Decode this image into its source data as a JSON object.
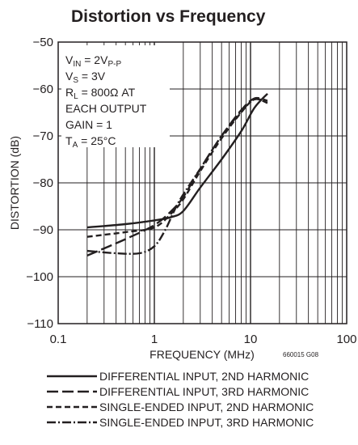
{
  "chart_data": {
    "type": "line",
    "title": "Distortion vs Frequency",
    "xlabel": "FREQUENCY (MHz)",
    "ylabel": "DISTORTION (dB)",
    "xscale": "log",
    "xlim": [
      0.1,
      100
    ],
    "ylim": [
      -110,
      -50
    ],
    "x_ticks": [
      "0.1",
      "1",
      "10",
      "100"
    ],
    "y_ticks": [
      "−50",
      "−60",
      "−70",
      "−80",
      "−90",
      "−100",
      "−110"
    ],
    "grid": true,
    "figure_code": "660015 G08",
    "conditions": {
      "line1": {
        "main": "V",
        "sub": "IN",
        "rest": " = 2V",
        "sub2": "P-P"
      },
      "line2": {
        "main": "V",
        "sub": "S",
        "rest": " = 3V"
      },
      "line3": {
        "main": "R",
        "sub": "L",
        "rest": " = 800Ω AT"
      },
      "line4": "EACH OUTPUT",
      "line5": "GAIN = 1",
      "line6": {
        "main": "T",
        "sub": "A",
        "rest": " = 25°C"
      }
    },
    "legend_position": "bottom",
    "series": [
      {
        "name": "DIFFERENTIAL INPUT, 2ND HARMONIC",
        "style": "solid",
        "x": [
          0.2,
          0.5,
          1,
          1.5,
          2,
          3,
          5,
          8,
          11,
          15
        ],
        "y": [
          -89.5,
          -88.8,
          -88,
          -87.3,
          -86,
          -81,
          -75,
          -69,
          -64,
          -61
        ]
      },
      {
        "name": "DIFFERENTIAL INPUT, 3RD HARMONIC",
        "style": "longdash",
        "x": [
          0.2,
          0.5,
          1,
          1.5,
          2,
          3,
          5,
          8,
          11,
          15
        ],
        "y": [
          -95.5,
          -92,
          -89,
          -86,
          -83,
          -77,
          -70,
          -64.5,
          -62,
          -62.5
        ]
      },
      {
        "name": "SINGLE-ENDED INPUT, 2ND HARMONIC",
        "style": "dash",
        "x": [
          0.2,
          0.5,
          1,
          1.5,
          2,
          3,
          5,
          8,
          11,
          15
        ],
        "y": [
          -91.5,
          -90.5,
          -89.5,
          -86.5,
          -83.5,
          -77.5,
          -70.5,
          -65,
          -62.2,
          -63
        ]
      },
      {
        "name": "SINGLE-ENDED INPUT, 3RD HARMONIC",
        "style": "dashdot",
        "x": [
          0.2,
          0.4,
          0.7,
          1,
          1.3,
          1.8,
          3,
          5,
          8,
          11,
          15
        ],
        "y": [
          -94.5,
          -95,
          -95,
          -93.5,
          -90,
          -84,
          -77,
          -70,
          -64.8,
          -62.2,
          -62.8
        ]
      }
    ]
  },
  "colors": {
    "ink": "#231f20",
    "background": "#ffffff"
  }
}
